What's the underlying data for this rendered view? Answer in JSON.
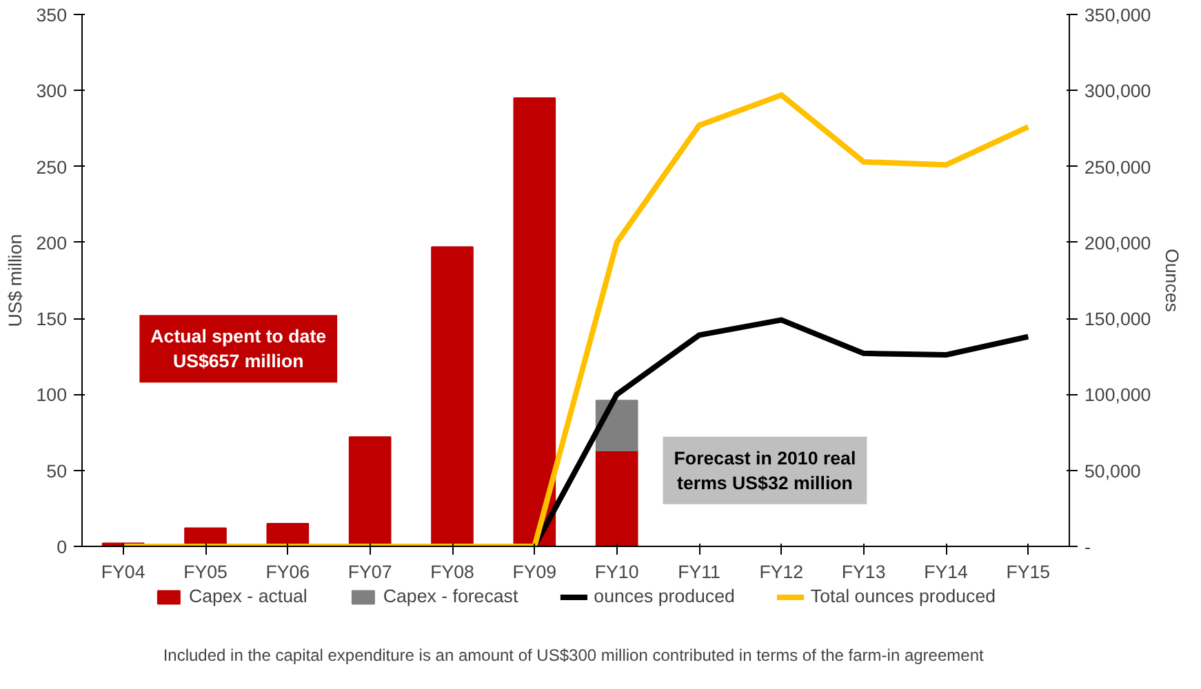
{
  "chart_data": {
    "type": "bar",
    "stacked": true,
    "ylabel": "US$ million",
    "y2label": "Ounces",
    "categories": [
      "FY04",
      "FY05",
      "FY06",
      "FY07",
      "FY08",
      "FY09",
      "FY10",
      "FY11",
      "FY12",
      "FY13",
      "FY14",
      "FY15"
    ],
    "series": [
      {
        "name": "Capex - actual",
        "color": "#c00000",
        "values": [
          2,
          12,
          15,
          72,
          197,
          295,
          63,
          null,
          null,
          null,
          null,
          null
        ]
      },
      {
        "name": "Capex - forecast",
        "color": "#808080",
        "values": [
          null,
          null,
          null,
          null,
          null,
          null,
          33,
          null,
          null,
          null,
          null,
          null
        ]
      },
      {
        "name": "ounces produced",
        "type": "line",
        "axis": "y2",
        "color": "#000000",
        "values": [
          0,
          0,
          0,
          0,
          0,
          0,
          100000,
          139000,
          149000,
          127000,
          126000,
          138000
        ]
      },
      {
        "name": "Total ounces produced",
        "type": "line",
        "axis": "y2",
        "color": "#ffc000",
        "values": [
          0,
          0,
          0,
          0,
          0,
          0,
          200000,
          277000,
          297000,
          253000,
          251000,
          276000
        ]
      }
    ],
    "ylim": [
      0,
      350
    ],
    "yticks": [
      0,
      50,
      100,
      150,
      200,
      250,
      300,
      350
    ],
    "y2lim": [
      0,
      350000
    ],
    "y2ticks": [
      {
        "value": 0,
        "label": "-"
      },
      {
        "value": 50000,
        "label": "50,000"
      },
      {
        "value": 100000,
        "label": "100,000"
      },
      {
        "value": 150000,
        "label": "150,000"
      },
      {
        "value": 200000,
        "label": "200,000"
      },
      {
        "value": 250000,
        "label": "250,000"
      },
      {
        "value": 300000,
        "label": "300,000"
      },
      {
        "value": 350000,
        "label": "350,000"
      }
    ],
    "grid": false,
    "legend": "bottom",
    "annotations": [
      "Actual spent to date US$657 million",
      "Forecast in 2010 real terms US$32 million",
      "Included in the capital expenditure is an amount of  US$300 million contributed in terms of the farm-in agreement"
    ]
  }
}
